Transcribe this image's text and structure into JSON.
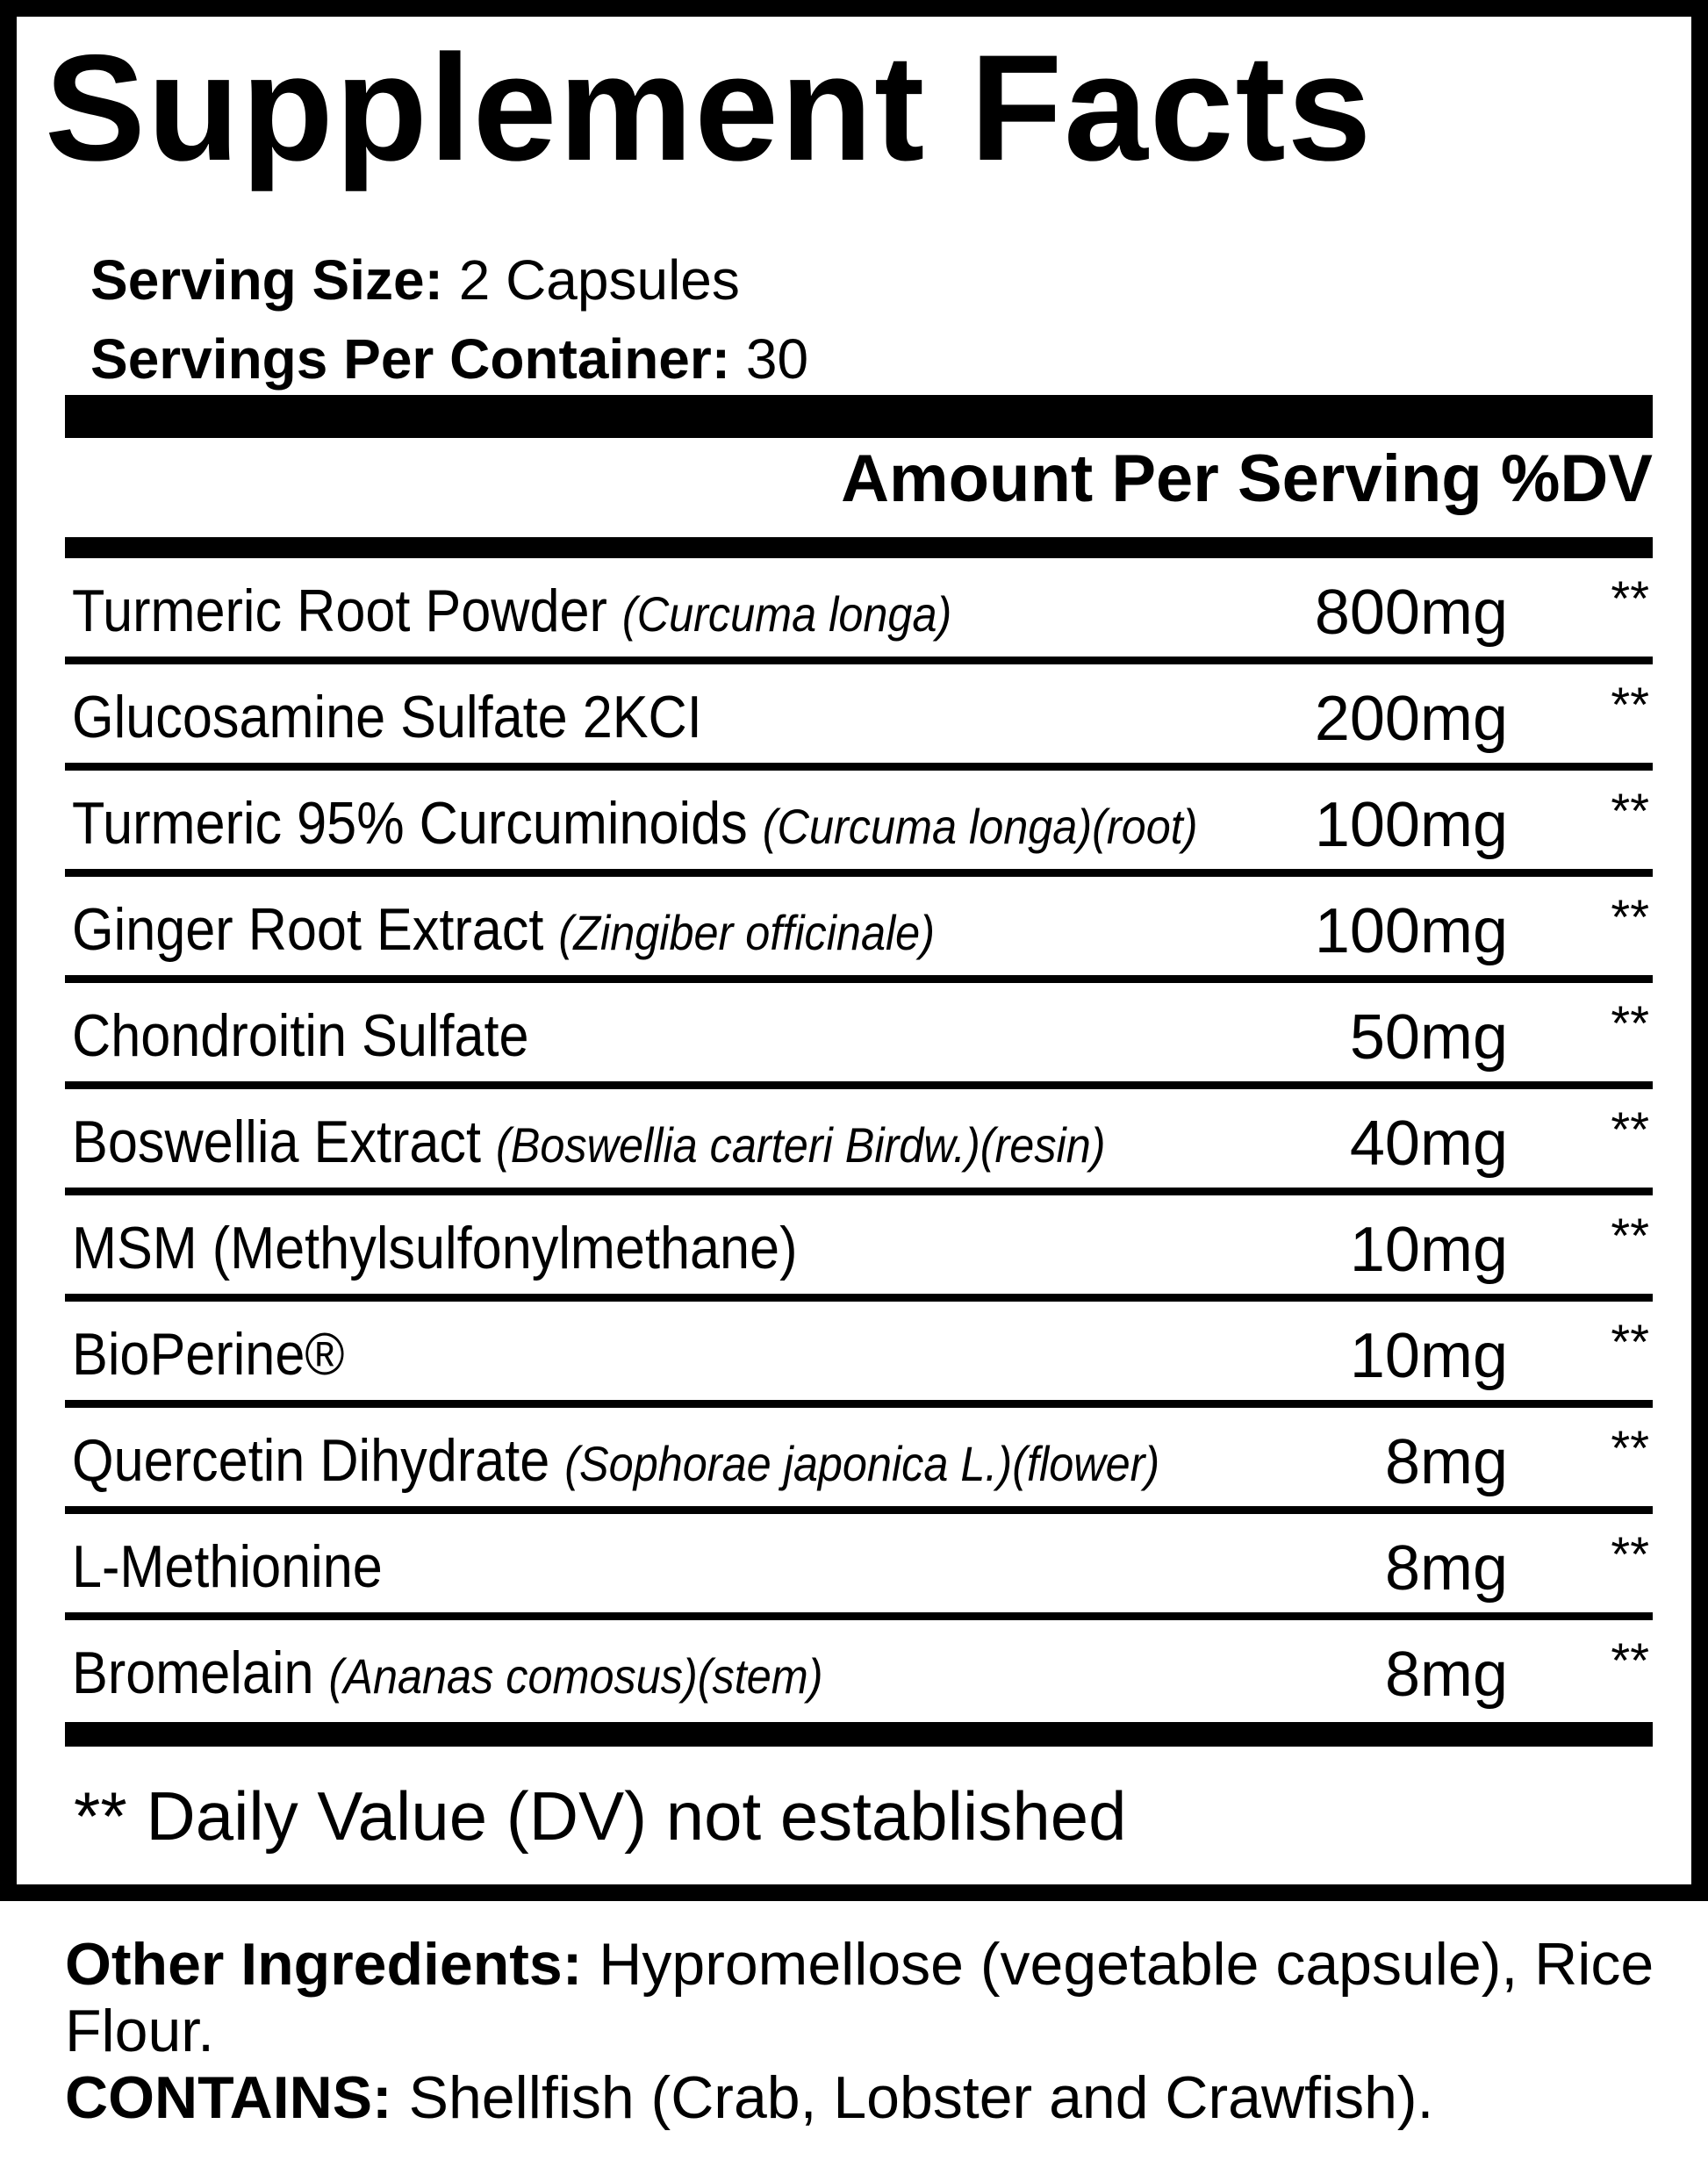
{
  "title": "Supplement Facts",
  "serving_size": {
    "label": "Serving Size:",
    "value": "2 Capsules"
  },
  "servings_per_container": {
    "label": "Servings Per Container:",
    "value": "30"
  },
  "column_header": "Amount Per Serving %DV",
  "ingredients": [
    {
      "name": "Turmeric Root Powder",
      "source": "(Curcuma longa)",
      "amount": "800mg",
      "dv": "**"
    },
    {
      "name": "Glucosamine Sulfate 2KCI",
      "source": "",
      "amount": "200mg",
      "dv": "**"
    },
    {
      "name": "Turmeric 95% Curcuminoids",
      "source": "(Curcuma longa)(root)",
      "amount": "100mg",
      "dv": "**"
    },
    {
      "name": "Ginger Root Extract",
      "source": "(Zingiber officinale)",
      "amount": "100mg",
      "dv": "**"
    },
    {
      "name": "Chondroitin Sulfate",
      "source": "",
      "amount": "50mg",
      "dv": "**"
    },
    {
      "name": "Boswellia Extract",
      "source": "(Boswellia carteri Birdw.)(resin)",
      "amount": "40mg",
      "dv": "**"
    },
    {
      "name": "MSM (Methylsulfonylmethane)",
      "source": "",
      "amount": "10mg",
      "dv": "**"
    },
    {
      "name": "BioPerine®",
      "source": "",
      "amount": "10mg",
      "dv": "**"
    },
    {
      "name": "Quercetin Dihydrate",
      "source": "(Sophorae japonica L.)(flower)",
      "amount": "8mg",
      "dv": "**"
    },
    {
      "name": "L-Methionine",
      "source": "",
      "amount": "8mg",
      "dv": "**"
    },
    {
      "name": "Bromelain",
      "source": "(Ananas comosus)(stem)",
      "amount": "8mg",
      "dv": "**"
    }
  ],
  "footnote": "** Daily Value (DV) not established",
  "other_ingredients": {
    "label": "Other Ingredients:",
    "value": "Hypromellose (vegetable capsule), Rice Flour."
  },
  "contains": {
    "label": "CONTAINS:",
    "value": "Shellfish (Crab, Lobster and Crawfish)."
  }
}
